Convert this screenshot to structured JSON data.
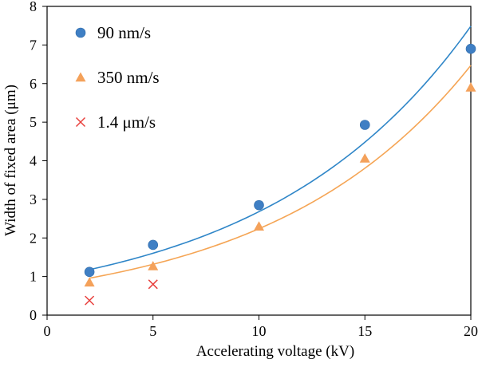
{
  "chart_data": {
    "type": "scatter",
    "xlabel": "Accelerating voltage (kV)",
    "ylabel": "Width of fixed area (μm)",
    "xlim": [
      0,
      20
    ],
    "ylim": [
      0,
      8
    ],
    "x_ticks": [
      "0",
      "5",
      "10",
      "15",
      "20"
    ],
    "y_ticks": [
      "0",
      "1",
      "2",
      "3",
      "4",
      "5",
      "6",
      "7",
      "8"
    ],
    "grid": false,
    "legend_position": "top-left",
    "series": [
      {
        "name": "90 nm/s",
        "marker": "circle",
        "color": "#3f7fc4",
        "points": [
          [
            2,
            1.12
          ],
          [
            5,
            1.82
          ],
          [
            10,
            2.85
          ],
          [
            15,
            4.93
          ],
          [
            20,
            6.9
          ]
        ],
        "trendline": {
          "type": "exponential",
          "x": [
            2,
            20
          ],
          "a": 0.96,
          "b": 0.1027,
          "color": "#2f86c8"
        }
      },
      {
        "name": "350 nm/s",
        "marker": "triangle",
        "color": "#f4a15a",
        "points": [
          [
            2,
            0.85
          ],
          [
            5,
            1.27
          ],
          [
            10,
            2.3
          ],
          [
            15,
            4.06
          ],
          [
            20,
            5.9
          ]
        ],
        "trendline": {
          "type": "exponential",
          "x": [
            2,
            20
          ],
          "a": 0.775,
          "b": 0.1061,
          "color": "#f5a555"
        }
      },
      {
        "name": "1.4 μm/s",
        "marker": "cross",
        "color": "#e8403d",
        "points": [
          [
            2,
            0.38
          ],
          [
            5,
            0.8
          ]
        ]
      }
    ]
  }
}
